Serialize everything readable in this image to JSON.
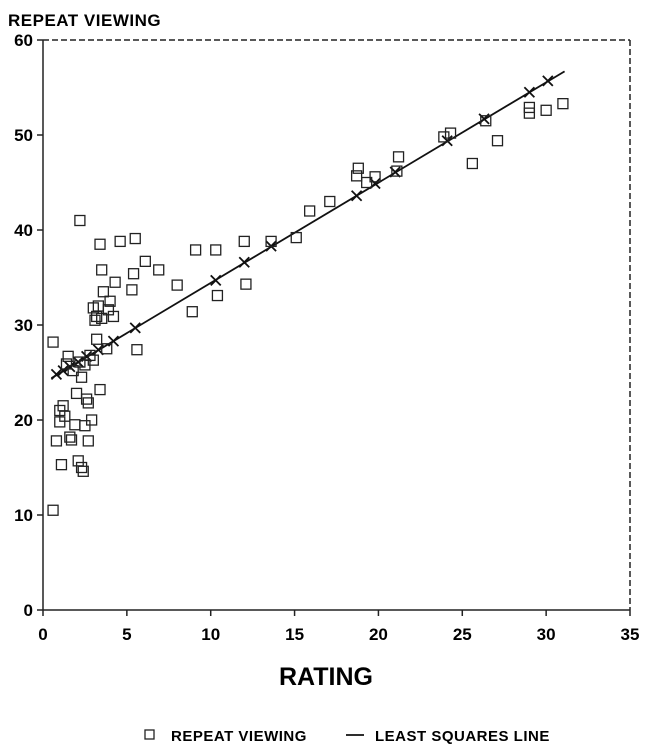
{
  "chart_data": {
    "type": "scatter",
    "title": "REPEAT VIEWING",
    "xlabel": "RATING",
    "ylabel": "",
    "xlim": [
      0,
      35
    ],
    "ylim": [
      0,
      60
    ],
    "xticks": [
      0,
      5,
      10,
      15,
      20,
      25,
      30,
      35
    ],
    "yticks": [
      0,
      10,
      20,
      30,
      40,
      50,
      60
    ],
    "grid": false,
    "legend_position": "bottom",
    "series": [
      {
        "name": "REPEAT VIEWING",
        "marker": "square",
        "points": [
          [
            0.6,
            10.5
          ],
          [
            0.6,
            28.2
          ],
          [
            0.8,
            17.8
          ],
          [
            1.0,
            19.8
          ],
          [
            1.0,
            21.0
          ],
          [
            1.1,
            15.3
          ],
          [
            1.2,
            21.5
          ],
          [
            1.3,
            20.4
          ],
          [
            1.4,
            25.9
          ],
          [
            1.5,
            26.7
          ],
          [
            1.6,
            18.2
          ],
          [
            1.7,
            17.9
          ],
          [
            1.8,
            25.2
          ],
          [
            1.9,
            19.5
          ],
          [
            2.0,
            22.8
          ],
          [
            2.1,
            15.7
          ],
          [
            2.2,
            26.1
          ],
          [
            2.2,
            41.0
          ],
          [
            2.3,
            24.5
          ],
          [
            2.3,
            15.0
          ],
          [
            2.4,
            14.6
          ],
          [
            2.5,
            25.8
          ],
          [
            2.5,
            19.4
          ],
          [
            2.6,
            22.2
          ],
          [
            2.7,
            21.8
          ],
          [
            2.7,
            17.8
          ],
          [
            2.8,
            26.8
          ],
          [
            2.9,
            20.0
          ],
          [
            3.0,
            26.3
          ],
          [
            3.0,
            31.8
          ],
          [
            3.1,
            30.5
          ],
          [
            3.2,
            28.5
          ],
          [
            3.2,
            30.9
          ],
          [
            3.3,
            32.0
          ],
          [
            3.4,
            23.2
          ],
          [
            3.4,
            38.5
          ],
          [
            3.5,
            35.8
          ],
          [
            3.5,
            30.7
          ],
          [
            3.6,
            33.5
          ],
          [
            3.8,
            27.5
          ],
          [
            3.9,
            31.6
          ],
          [
            4.0,
            32.5
          ],
          [
            4.2,
            30.9
          ],
          [
            4.3,
            34.5
          ],
          [
            4.6,
            38.8
          ],
          [
            5.3,
            33.7
          ],
          [
            5.4,
            35.4
          ],
          [
            5.5,
            39.1
          ],
          [
            5.6,
            27.4
          ],
          [
            6.1,
            36.7
          ],
          [
            6.9,
            35.8
          ],
          [
            8.0,
            34.2
          ],
          [
            8.9,
            31.4
          ],
          [
            9.1,
            37.9
          ],
          [
            10.3,
            37.9
          ],
          [
            10.4,
            33.1
          ],
          [
            12.0,
            38.8
          ],
          [
            12.1,
            34.3
          ],
          [
            13.6,
            38.8
          ],
          [
            15.1,
            39.2
          ],
          [
            15.9,
            42.0
          ],
          [
            17.1,
            43.0
          ],
          [
            18.7,
            45.7
          ],
          [
            18.8,
            46.5
          ],
          [
            19.3,
            45.0
          ],
          [
            19.8,
            45.6
          ],
          [
            21.1,
            46.2
          ],
          [
            21.2,
            47.7
          ],
          [
            23.9,
            49.8
          ],
          [
            24.3,
            50.2
          ],
          [
            25.6,
            47.0
          ],
          [
            26.4,
            51.5
          ],
          [
            27.1,
            49.4
          ],
          [
            29.0,
            52.3
          ],
          [
            29.0,
            52.9
          ],
          [
            30.0,
            52.6
          ],
          [
            31.0,
            53.3
          ]
        ]
      },
      {
        "name": "LEAST SQUARES LINE",
        "marker": "line",
        "line": [
          [
            0.5,
            24.4
          ],
          [
            31.1,
            56.7
          ]
        ],
        "x_markers": [
          [
            0.8,
            24.8
          ],
          [
            1.2,
            25.2
          ],
          [
            1.6,
            25.6
          ],
          [
            2.1,
            26.1
          ],
          [
            2.6,
            26.7
          ],
          [
            3.3,
            27.4
          ],
          [
            4.2,
            28.3
          ],
          [
            5.5,
            29.7
          ],
          [
            10.3,
            34.7
          ],
          [
            12.0,
            36.6
          ],
          [
            13.6,
            38.3
          ],
          [
            18.7,
            43.6
          ],
          [
            19.8,
            44.9
          ],
          [
            21.0,
            46.1
          ],
          [
            24.1,
            49.4
          ],
          [
            26.3,
            51.7
          ],
          [
            29.0,
            54.5
          ],
          [
            30.1,
            55.7
          ]
        ]
      }
    ]
  }
}
